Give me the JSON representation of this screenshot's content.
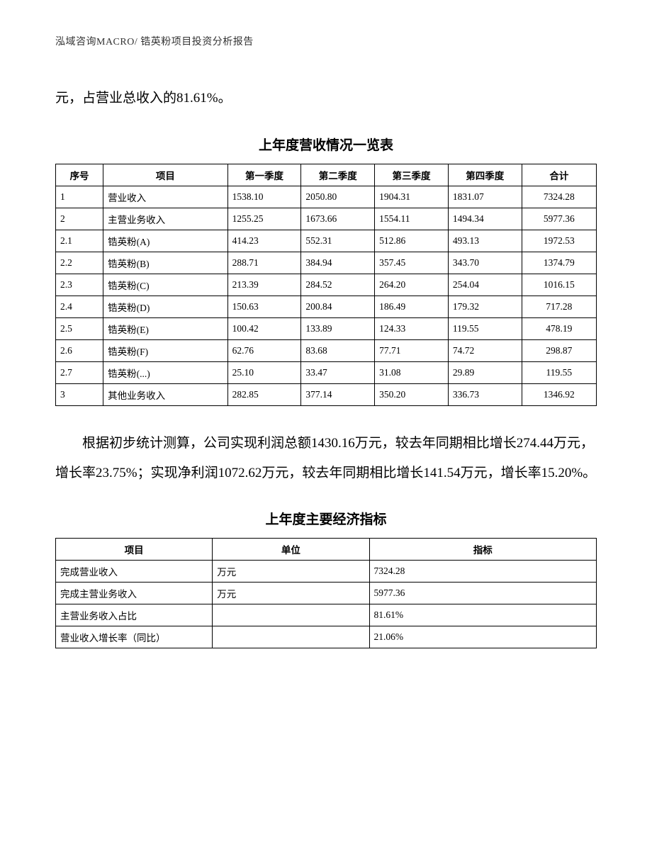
{
  "header": {
    "text": "泓域咨询MACRO/   锆英粉项目投资分析报告"
  },
  "para1": "元，占营业总收入的81.61%。",
  "table1": {
    "title": "上年度营收情况一览表",
    "columns": [
      "序号",
      "项目",
      "第一季度",
      "第二季度",
      "第三季度",
      "第四季度",
      "合计"
    ],
    "col_widths_pct": [
      8.8,
      23,
      13.6,
      13.6,
      13.6,
      13.6,
      13.8
    ],
    "border_color": "#000000",
    "font_size_pt": 10,
    "rows": [
      [
        "1",
        "营业收入",
        "1538.10",
        "2050.80",
        "1904.31",
        "1831.07",
        "7324.28"
      ],
      [
        "2",
        "主营业务收入",
        "1255.25",
        "1673.66",
        "1554.11",
        "1494.34",
        "5977.36"
      ],
      [
        "2.1",
        "锆英粉(A)",
        "414.23",
        "552.31",
        "512.86",
        "493.13",
        "1972.53"
      ],
      [
        "2.2",
        "锆英粉(B)",
        "288.71",
        "384.94",
        "357.45",
        "343.70",
        "1374.79"
      ],
      [
        "2.3",
        "锆英粉(C)",
        "213.39",
        "284.52",
        "264.20",
        "254.04",
        "1016.15"
      ],
      [
        "2.4",
        "锆英粉(D)",
        "150.63",
        "200.84",
        "186.49",
        "179.32",
        "717.28"
      ],
      [
        "2.5",
        "锆英粉(E)",
        "100.42",
        "133.89",
        "124.33",
        "119.55",
        "478.19"
      ],
      [
        "2.6",
        "锆英粉(F)",
        "62.76",
        "83.68",
        "77.71",
        "74.72",
        "298.87"
      ],
      [
        "2.7",
        "锆英粉(...)",
        "25.10",
        "33.47",
        "31.08",
        "29.89",
        "119.55"
      ],
      [
        "3",
        "其他业务收入",
        "282.85",
        "377.14",
        "350.20",
        "336.73",
        "1346.92"
      ]
    ]
  },
  "para2": "根据初步统计测算，公司实现利润总额1430.16万元，较去年同期相比增长274.44万元，增长率23.75%；实现净利润1072.62万元，较去年同期相比增长141.54万元，增长率15.20%。",
  "table2": {
    "title": "上年度主要经济指标",
    "columns": [
      "项目",
      "单位",
      "指标"
    ],
    "col_widths_pct": [
      29,
      29,
      42
    ],
    "border_color": "#000000",
    "font_size_pt": 10,
    "rows": [
      [
        "完成营业收入",
        "万元",
        "7324.28"
      ],
      [
        "完成主营业务收入",
        "万元",
        "5977.36"
      ],
      [
        "主营业务收入占比",
        "",
        "81.61%"
      ],
      [
        "营业收入增长率（同比）",
        "",
        "21.06%"
      ]
    ]
  },
  "style": {
    "page_bg": "#ffffff",
    "text_color": "#000000",
    "body_font_size_pt": 14,
    "title_font_size_pt": 14,
    "title_font_weight": "bold",
    "line_height": 2.2,
    "font_family": "SimSun"
  }
}
